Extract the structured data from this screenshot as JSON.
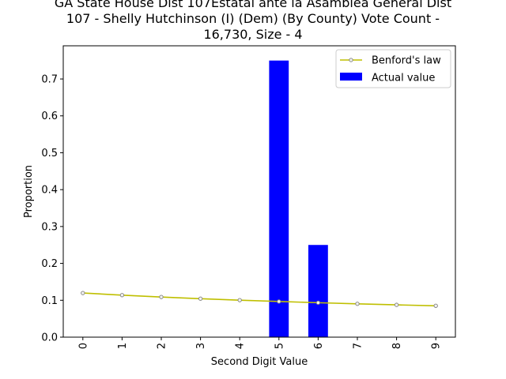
{
  "chart_data": {
    "type": "bar",
    "title_lines": [
      "GA State House Dist 107Estatal ante la Asamblea General Dist",
      "107 - Shelly Hutchinson (I) (Dem) (By County) Vote Count -",
      "16,730, Size - 4"
    ],
    "xlabel": "Second Digit Value",
    "ylabel": "Proportion",
    "categories": [
      "0",
      "1",
      "2",
      "3",
      "4",
      "5",
      "6",
      "7",
      "8",
      "9"
    ],
    "ylim": [
      0,
      0.79
    ],
    "yticks": [
      "0.0",
      "0.1",
      "0.2",
      "0.3",
      "0.4",
      "0.5",
      "0.6",
      "0.7"
    ],
    "grid": false,
    "legend_position": "top-right",
    "series": [
      {
        "name": "Actual value",
        "kind": "bar",
        "color": "#0000ff",
        "values": [
          0,
          0,
          0,
          0,
          0,
          0.75,
          0.25,
          0,
          0,
          0
        ]
      },
      {
        "name": "Benford's law",
        "kind": "line",
        "color": "#bfbf00",
        "marker_edge": "#808080",
        "values": [
          0.1197,
          0.1139,
          0.1088,
          0.1043,
          0.1003,
          0.0967,
          0.0934,
          0.0904,
          0.0876,
          0.085
        ]
      }
    ]
  }
}
